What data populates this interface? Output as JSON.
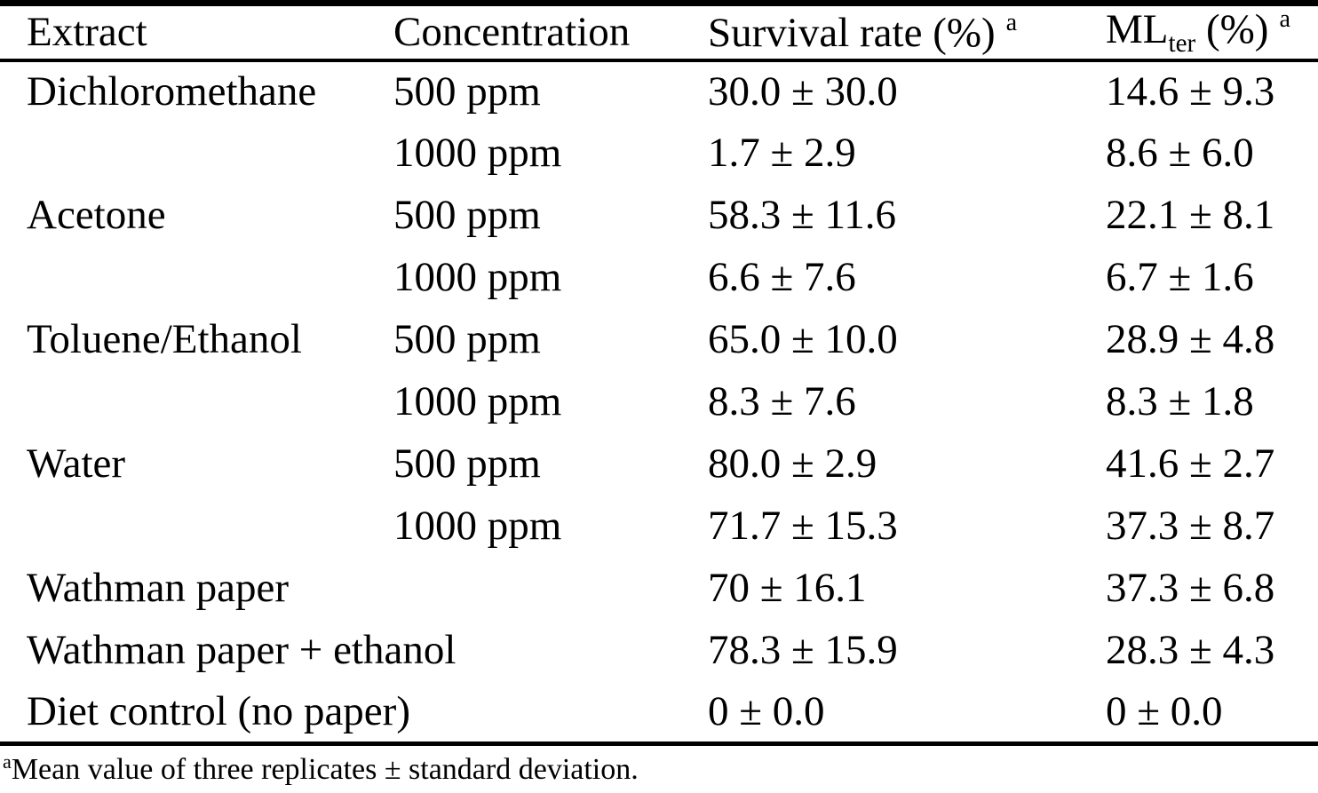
{
  "colors": {
    "text": "#000000",
    "background": "#ffffff",
    "rule": "#000000"
  },
  "table": {
    "columns": [
      {
        "label": "Extract"
      },
      {
        "label": "Concentration"
      },
      {
        "label": "Survival rate (%)",
        "sup": "a"
      },
      {
        "prefix": "ML",
        "sub": "ter",
        "suffix": " (%)",
        "sup": "a"
      }
    ],
    "rows": [
      {
        "extract": "Dichloromethane",
        "concentration": "500 ppm",
        "survival_rate": "30.0 ± 30.0",
        "ml_ter": "14.6 ± 9.3"
      },
      {
        "extract": "",
        "concentration": "1000 ppm",
        "survival_rate": "1.7 ± 2.9",
        "ml_ter": "8.6 ± 6.0"
      },
      {
        "extract": "Acetone",
        "concentration": "500 ppm",
        "survival_rate": "58.3 ± 11.6",
        "ml_ter": "22.1 ± 8.1"
      },
      {
        "extract": "",
        "concentration": "1000 ppm",
        "survival_rate": "6.6 ± 7.6",
        "ml_ter": "6.7 ± 1.6"
      },
      {
        "extract": "Toluene/Ethanol",
        "concentration": "500 ppm",
        "survival_rate": "65.0 ± 10.0",
        "ml_ter": "28.9 ± 4.8"
      },
      {
        "extract": "",
        "concentration": "1000 ppm",
        "survival_rate": "8.3 ± 7.6",
        "ml_ter": "8.3 ± 1.8"
      },
      {
        "extract": "Water",
        "concentration": "500 ppm",
        "survival_rate": "80.0 ± 2.9",
        "ml_ter": "41.6 ± 2.7"
      },
      {
        "extract": "",
        "concentration": "1000 ppm",
        "survival_rate": "71.7 ± 15.3",
        "ml_ter": "37.3 ± 8.7"
      },
      {
        "extract": "Wathman paper",
        "concentration": "",
        "survival_rate": "70 ± 16.1",
        "ml_ter": "37.3 ± 6.8"
      },
      {
        "extract": "Wathman paper + ethanol",
        "concentration": "",
        "survival_rate": "78.3 ± 15.9",
        "ml_ter": "28.3 ± 4.3"
      },
      {
        "extract": "Diet control (no paper)",
        "concentration": "",
        "survival_rate": "0 ± 0.0",
        "ml_ter": "0 ± 0.0"
      }
    ],
    "footnote": {
      "sup": "a",
      "text": "Mean value of three replicates ± standard deviation."
    }
  }
}
